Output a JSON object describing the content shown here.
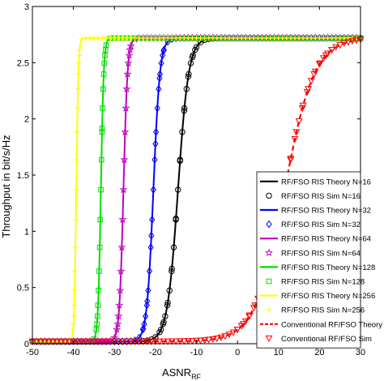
{
  "chart_data": {
    "type": "line",
    "xlabel": "ASNR",
    "xlabel_sub": "RF",
    "ylabel": "Throughput in bit/s/Hz",
    "xlim": [
      -50,
      30
    ],
    "ylim": [
      0,
      3
    ],
    "xticks": [
      "-50",
      "-40",
      "-30",
      "-20",
      "-10",
      "0",
      "10",
      "20",
      "30"
    ],
    "yticks": [
      "0",
      "0.5",
      "1",
      "1.5",
      "2",
      "2.5",
      "3"
    ],
    "grid": false,
    "legend_position": "bottom-right",
    "series": [
      {
        "name": "RF/FSO RIS Theory N=16",
        "style": "line",
        "color": "#000000",
        "dash": "none",
        "center": -14.5,
        "width": 1.3,
        "saturation": 2.72
      },
      {
        "name": "RF/FSO RIS Sim N=16",
        "style": "marker",
        "marker": "circle",
        "color": "#000000",
        "center": -14.5,
        "width": 1.3,
        "saturation": 2.72
      },
      {
        "name": "RF/FSO RIS Theory N=32",
        "style": "line",
        "color": "#0000ff",
        "dash": "none",
        "center": -20.5,
        "width": 0.8,
        "saturation": 2.72
      },
      {
        "name": "RF/FSO RIS Sim N=32",
        "style": "marker",
        "marker": "diamond",
        "color": "#0000ff",
        "center": -20.5,
        "width": 0.8,
        "saturation": 2.72
      },
      {
        "name": "RF/FSO RIS Theory N=64",
        "style": "line",
        "color": "#c000c0",
        "dash": "none",
        "center": -27.8,
        "width": 0.5,
        "saturation": 2.72
      },
      {
        "name": "RF/FSO RIS Sim N=64",
        "style": "marker",
        "marker": "star",
        "color": "#c000c0",
        "center": -27.8,
        "width": 0.5,
        "saturation": 2.72
      },
      {
        "name": "RF/FSO RIS Theory N=128",
        "style": "line",
        "color": "#00dd00",
        "dash": "none",
        "center": -33.3,
        "width": 0.35,
        "saturation": 2.72
      },
      {
        "name": "RF/FSO RIS Sim N=128",
        "style": "marker",
        "marker": "square",
        "color": "#00dd00",
        "center": -33.3,
        "width": 0.35,
        "saturation": 2.72
      },
      {
        "name": "RF/FSO RIS Theory N=256",
        "style": "line",
        "color": "#ffff00",
        "dash": "none",
        "center": -39.3,
        "width": 0.25,
        "saturation": 2.72
      },
      {
        "name": "RF/FSO RIS Sim N=256",
        "style": "marker",
        "marker": "plus",
        "color": "#ffff00",
        "center": -39.3,
        "width": 0.25,
        "saturation": 2.72
      },
      {
        "name": "Conventional RF/FSO Theory",
        "style": "line",
        "color": "#ff0000",
        "dash": "6,4",
        "center": 11.5,
        "width": 3.6,
        "saturation": 2.72
      },
      {
        "name": "Conventional RF/FSO Sim",
        "style": "marker",
        "marker": "triangle-down",
        "color": "#ff0000",
        "center": 11.5,
        "width": 3.6,
        "saturation": 2.72
      }
    ]
  }
}
